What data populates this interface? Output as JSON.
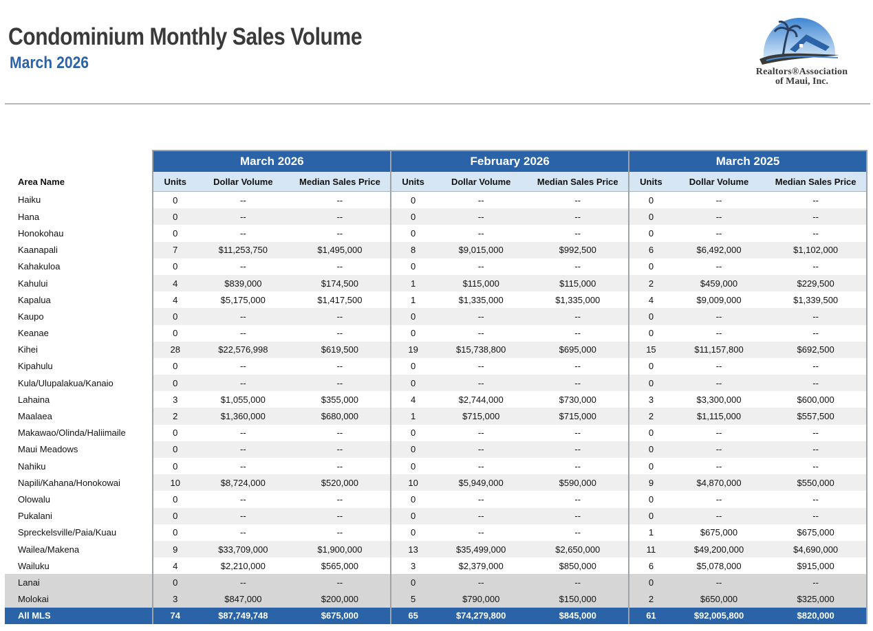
{
  "header": {
    "title": "Condominium Monthly Sales Volume",
    "subtitle": "March 2026"
  },
  "logo": {
    "line1": "Realtors®Association",
    "line2": "of Maui, Inc.",
    "colors": {
      "sky": "#4a8fd6",
      "roof": "#2a63a8",
      "swoosh": "#3a3a3a"
    }
  },
  "table": {
    "periods": [
      "March 2026",
      "February 2026",
      "March 2025"
    ],
    "area_header": "Area Name",
    "columns": [
      "Units",
      "Dollar Volume",
      "Median Sales Price"
    ],
    "rows": [
      {
        "area": "Haiku",
        "v": [
          "0",
          "--",
          "--",
          "0",
          "--",
          "--",
          "0",
          "--",
          "--"
        ]
      },
      {
        "area": "Hana",
        "v": [
          "0",
          "--",
          "--",
          "0",
          "--",
          "--",
          "0",
          "--",
          "--"
        ]
      },
      {
        "area": "Honokohau",
        "v": [
          "0",
          "--",
          "--",
          "0",
          "--",
          "--",
          "0",
          "--",
          "--"
        ]
      },
      {
        "area": "Kaanapali",
        "v": [
          "7",
          "$11,253,750",
          "$1,495,000",
          "8",
          "$9,015,000",
          "$992,500",
          "6",
          "$6,492,000",
          "$1,102,000"
        ]
      },
      {
        "area": "Kahakuloa",
        "v": [
          "0",
          "--",
          "--",
          "0",
          "--",
          "--",
          "0",
          "--",
          "--"
        ]
      },
      {
        "area": "Kahului",
        "v": [
          "4",
          "$839,000",
          "$174,500",
          "1",
          "$115,000",
          "$115,000",
          "2",
          "$459,000",
          "$229,500"
        ]
      },
      {
        "area": "Kapalua",
        "v": [
          "4",
          "$5,175,000",
          "$1,417,500",
          "1",
          "$1,335,000",
          "$1,335,000",
          "4",
          "$9,009,000",
          "$1,339,500"
        ]
      },
      {
        "area": "Kaupo",
        "v": [
          "0",
          "--",
          "--",
          "0",
          "--",
          "--",
          "0",
          "--",
          "--"
        ]
      },
      {
        "area": "Keanae",
        "v": [
          "0",
          "--",
          "--",
          "0",
          "--",
          "--",
          "0",
          "--",
          "--"
        ]
      },
      {
        "area": "Kihei",
        "v": [
          "28",
          "$22,576,998",
          "$619,500",
          "19",
          "$15,738,800",
          "$695,000",
          "15",
          "$11,157,800",
          "$692,500"
        ]
      },
      {
        "area": "Kipahulu",
        "v": [
          "0",
          "--",
          "--",
          "0",
          "--",
          "--",
          "0",
          "--",
          "--"
        ]
      },
      {
        "area": "Kula/Ulupalakua/Kanaio",
        "v": [
          "0",
          "--",
          "--",
          "0",
          "--",
          "--",
          "0",
          "--",
          "--"
        ]
      },
      {
        "area": "Lahaina",
        "v": [
          "3",
          "$1,055,000",
          "$355,000",
          "4",
          "$2,744,000",
          "$730,000",
          "3",
          "$3,300,000",
          "$600,000"
        ]
      },
      {
        "area": "Maalaea",
        "v": [
          "2",
          "$1,360,000",
          "$680,000",
          "1",
          "$715,000",
          "$715,000",
          "2",
          "$1,115,000",
          "$557,500"
        ]
      },
      {
        "area": "Makawao/Olinda/Haliimaile",
        "v": [
          "0",
          "--",
          "--",
          "0",
          "--",
          "--",
          "0",
          "--",
          "--"
        ]
      },
      {
        "area": "Maui Meadows",
        "v": [
          "0",
          "--",
          "--",
          "0",
          "--",
          "--",
          "0",
          "--",
          "--"
        ]
      },
      {
        "area": "Nahiku",
        "v": [
          "0",
          "--",
          "--",
          "0",
          "--",
          "--",
          "0",
          "--",
          "--"
        ]
      },
      {
        "area": "Napili/Kahana/Honokowai",
        "v": [
          "10",
          "$8,724,000",
          "$520,000",
          "10",
          "$5,949,000",
          "$590,000",
          "9",
          "$4,870,000",
          "$550,000"
        ]
      },
      {
        "area": "Olowalu",
        "v": [
          "0",
          "--",
          "--",
          "0",
          "--",
          "--",
          "0",
          "--",
          "--"
        ]
      },
      {
        "area": "Pukalani",
        "v": [
          "0",
          "--",
          "--",
          "0",
          "--",
          "--",
          "0",
          "--",
          "--"
        ]
      },
      {
        "area": "Spreckelsville/Paia/Kuau",
        "v": [
          "0",
          "--",
          "--",
          "0",
          "--",
          "--",
          "1",
          "$675,000",
          "$675,000"
        ]
      },
      {
        "area": "Wailea/Makena",
        "v": [
          "9",
          "$33,709,000",
          "$1,900,000",
          "13",
          "$35,499,000",
          "$2,650,000",
          "11",
          "$49,200,000",
          "$4,690,000"
        ]
      },
      {
        "area": "Wailuku",
        "v": [
          "4",
          "$2,210,000",
          "$565,000",
          "3",
          "$2,379,000",
          "$850,000",
          "6",
          "$5,078,000",
          "$915,000"
        ]
      }
    ],
    "island_rows": [
      {
        "area": "Lanai",
        "v": [
          "0",
          "--",
          "--",
          "0",
          "--",
          "--",
          "0",
          "--",
          "--"
        ]
      },
      {
        "area": "Molokai",
        "v": [
          "3",
          "$847,000",
          "$200,000",
          "5",
          "$790,000",
          "$150,000",
          "2",
          "$650,000",
          "$325,000"
        ]
      }
    ],
    "total": {
      "area": "All MLS",
      "v": [
        "74",
        "$87,749,748",
        "$675,000",
        "65",
        "$74,279,800",
        "$845,000",
        "61",
        "$92,005,800",
        "$820,000"
      ]
    }
  }
}
